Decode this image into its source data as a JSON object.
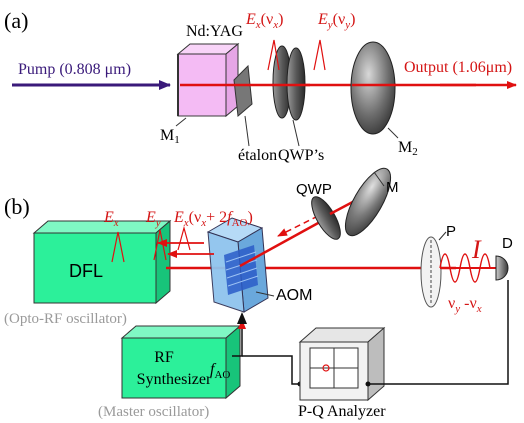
{
  "panel_a": {
    "label": "(a)",
    "pump": "Pump (0.808 μm)",
    "crystal": "Nd:YAG",
    "m1_main": "M",
    "m1_sub": "1",
    "etalon": "étalon",
    "ex_label_main": "E",
    "ex_label_sub": "x",
    "ex_label_arg": "(ν",
    "ex_label_argsub": "x",
    "ex_label_close": ")",
    "ey_label_main": "E",
    "ey_label_sub": "y",
    "ey_label_arg": "(ν",
    "ey_label_argsub": "y",
    "ey_label_close": ")",
    "qwps": "QWP’s",
    "m2_main": "M",
    "m2_sub": "2",
    "output": "Output (1.06μm)"
  },
  "panel_b": {
    "label": "(b)",
    "ex_main": "E",
    "ex_sub": "x",
    "ey_main": "E",
    "ey_sub": "y",
    "shift_main": "E",
    "shift_sub": "x",
    "shift_arg": "(ν",
    "shift_argsub": "x",
    "shift_plus": "+ 2",
    "shift_f": "f",
    "shift_fsub": "AO",
    "shift_close": ")",
    "qwp": "QWP",
    "mirror": "M",
    "polarizer": "P",
    "detector": "D",
    "intensity": "I",
    "beat_nu1": "ν",
    "beat_sub1": "y",
    "beat_mid": " -ν",
    "beat_sub2": "x",
    "dfl": "DFL",
    "dfl_caption": "(Opto-RF oscillator)",
    "aom": "AOM",
    "rf_line1": "RF",
    "rf_line2": "Synthesizer",
    "rf_caption": "(Master oscillator)",
    "fao_main": "f",
    "fao_sub": "AO",
    "analyzer": "P-Q Analyzer"
  },
  "colors": {
    "beam": "#e01010",
    "label_red": "#d41515",
    "pump": "#3a1a7a",
    "box_green": "#2cf09a",
    "crystal_pink": "#f4b8f4",
    "aom_blue": "#8fc4ee",
    "caption_gray": "#9a9a9a"
  }
}
